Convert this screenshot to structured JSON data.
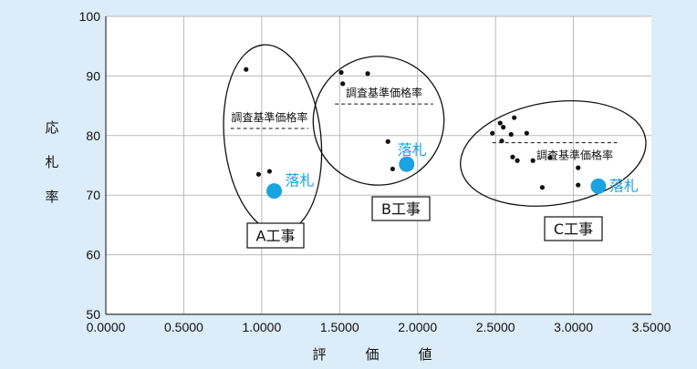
{
  "chart_data": {
    "type": "scatter",
    "title": "",
    "xlabel": "評　価　値",
    "ylabel": "応札率",
    "xlim": [
      0.0,
      3.5
    ],
    "ylim": [
      50,
      100
    ],
    "x_ticks": [
      "0.0000",
      "0.5000",
      "1.0000",
      "1.5000",
      "2.0000",
      "2.5000",
      "3.0000",
      "3.5000"
    ],
    "y_ticks": [
      "50",
      "60",
      "70",
      "80",
      "90",
      "100"
    ],
    "grid": true,
    "colors": {
      "background": "#dcecf8",
      "plot_background": "#ffffff",
      "points": "#111111",
      "winner": "#1aa3e0",
      "grid": "#bbbbbb"
    },
    "groups": [
      {
        "name": "A工事",
        "reference_label": "調査基準価格率",
        "reference_rate": 81.2,
        "reference_x_range": [
          0.8,
          1.3
        ],
        "winner_label": "落札",
        "winner": {
          "x": 1.08,
          "y": 70.7
        },
        "points": [
          {
            "x": 0.9,
            "y": 91.1
          },
          {
            "x": 0.98,
            "y": 73.5
          },
          {
            "x": 1.05,
            "y": 74.0
          }
        ],
        "ellipse": {
          "cx": 1.07,
          "cy": 79.5,
          "rx": 0.31,
          "ry": 15.8,
          "angle": 6
        }
      },
      {
        "name": "B工事",
        "reference_label": "調査基準価格率",
        "reference_rate": 85.3,
        "reference_x_range": [
          1.47,
          2.1
        ],
        "winner_label": "落札",
        "winner": {
          "x": 1.93,
          "y": 75.2
        },
        "points": [
          {
            "x": 1.51,
            "y": 90.6
          },
          {
            "x": 1.52,
            "y": 88.7
          },
          {
            "x": 1.68,
            "y": 90.4
          },
          {
            "x": 1.81,
            "y": 79.0
          },
          {
            "x": 1.84,
            "y": 74.4
          }
        ],
        "ellipse": {
          "cx": 1.75,
          "cy": 82.5,
          "rx": 0.42,
          "ry": 10.8,
          "angle": 14
        }
      },
      {
        "name": "C工事",
        "reference_label": "調査基準価格率",
        "reference_rate": 78.8,
        "reference_x_range": [
          2.48,
          3.28
        ],
        "winner_label": "落札",
        "winner": {
          "x": 3.16,
          "y": 71.5
        },
        "points": [
          {
            "x": 2.48,
            "y": 80.4
          },
          {
            "x": 2.53,
            "y": 82.1
          },
          {
            "x": 2.55,
            "y": 81.4
          },
          {
            "x": 2.6,
            "y": 80.2
          },
          {
            "x": 2.62,
            "y": 83.0
          },
          {
            "x": 2.54,
            "y": 79.1
          },
          {
            "x": 2.61,
            "y": 76.4
          },
          {
            "x": 2.64,
            "y": 75.8
          },
          {
            "x": 2.7,
            "y": 80.4
          },
          {
            "x": 2.74,
            "y": 75.8
          },
          {
            "x": 2.85,
            "y": 76.3
          },
          {
            "x": 2.8,
            "y": 71.3
          },
          {
            "x": 3.03,
            "y": 74.6
          },
          {
            "x": 3.03,
            "y": 71.7
          }
        ],
        "ellipse": {
          "cx": 2.87,
          "cy": 77.0,
          "rx": 0.6,
          "ry": 8.6,
          "angle": 9
        }
      }
    ]
  }
}
